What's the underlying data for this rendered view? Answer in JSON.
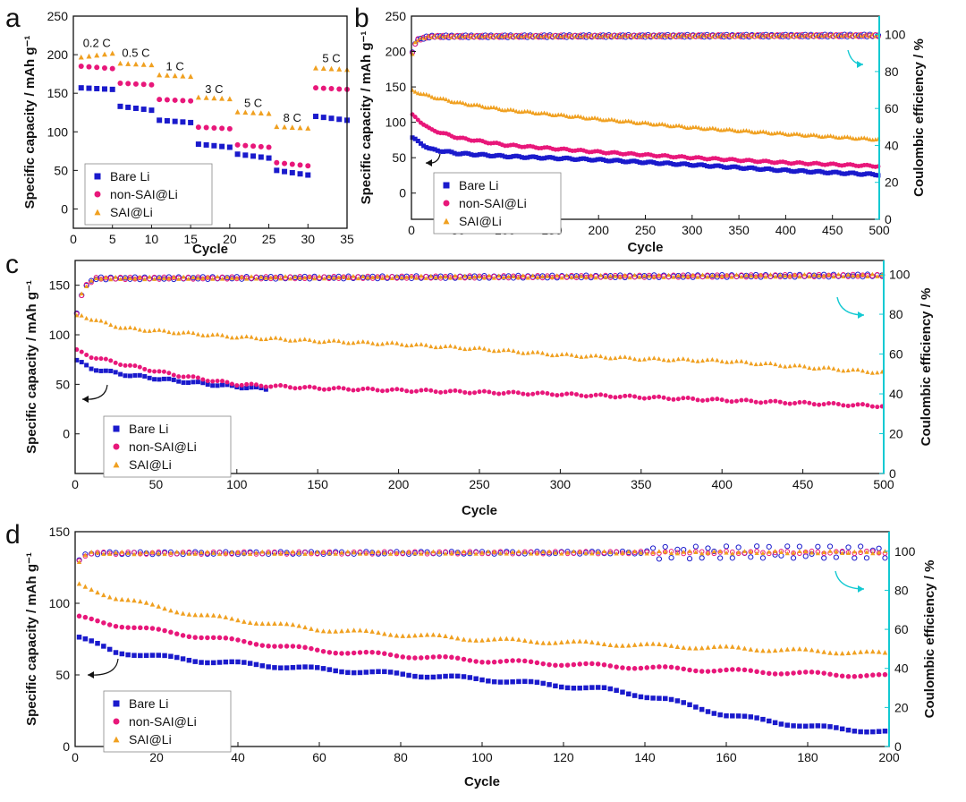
{
  "colors": {
    "bare": "#1a1acc",
    "non": "#e8177a",
    "sai": "#f0a020",
    "ce_axis": "#13c9d2",
    "axis": "#111111"
  },
  "chart_data": [
    {
      "panel": "a",
      "type": "scatter",
      "xlabel": "Cycle",
      "ylabel": "Specific capacity / mAh g⁻¹",
      "xlim": [
        0,
        35
      ],
      "ylim": [
        -25,
        250
      ],
      "xticks": [
        0,
        5,
        10,
        15,
        20,
        25,
        30,
        35
      ],
      "yticks": [
        0,
        50,
        100,
        150,
        200,
        250
      ],
      "legend": [
        "Bare Li",
        "non-SAI@Li",
        "SAI@Li"
      ],
      "rate_labels": [
        {
          "text": "0.2 C",
          "x": 3,
          "y": 210
        },
        {
          "text": "0.5 C",
          "x": 8,
          "y": 197
        },
        {
          "text": "1 C",
          "x": 13,
          "y": 180
        },
        {
          "text": "3 C",
          "x": 18,
          "y": 150
        },
        {
          "text": "5 C",
          "x": 23,
          "y": 132
        },
        {
          "text": "8 C",
          "x": 28,
          "y": 113
        },
        {
          "text": "5 C",
          "x": 33,
          "y": 190
        }
      ],
      "series": [
        {
          "name": "Bare Li",
          "segments": [
            [
              1,
              5,
              157,
              155
            ],
            [
              6,
              10,
              133,
              128
            ],
            [
              11,
              15,
              115,
              112
            ],
            [
              16,
              20,
              84,
              80
            ],
            [
              21,
              25,
              71,
              66
            ],
            [
              26,
              30,
              50,
              44
            ],
            [
              31,
              35,
              120,
              115
            ]
          ]
        },
        {
          "name": "non-SAI@Li",
          "segments": [
            [
              1,
              5,
              185,
              182
            ],
            [
              6,
              10,
              163,
              161
            ],
            [
              11,
              15,
              142,
              140
            ],
            [
              16,
              20,
              106,
              104
            ],
            [
              21,
              25,
              83,
              80
            ],
            [
              26,
              30,
              60,
              56
            ],
            [
              31,
              35,
              157,
              155
            ]
          ]
        },
        {
          "name": "SAI@Li",
          "segments": [
            [
              1,
              5,
              197,
              202
            ],
            [
              6,
              10,
              189,
              187
            ],
            [
              11,
              15,
              174,
              172
            ],
            [
              16,
              20,
              145,
              143
            ],
            [
              21,
              25,
              126,
              124
            ],
            [
              26,
              30,
              107,
              105
            ],
            [
              31,
              35,
              183,
              181
            ]
          ]
        }
      ]
    },
    {
      "panel": "b",
      "type": "scatter",
      "xlabel": "Cycle",
      "ylabel": "Specific capacity / mAh g⁻¹",
      "y2label": "Coulombic efficiency / %",
      "xlim": [
        0,
        500
      ],
      "ylim": [
        -37,
        250
      ],
      "y2lim": [
        0,
        110
      ],
      "xticks": [
        0,
        50,
        100,
        150,
        200,
        250,
        300,
        350,
        400,
        450,
        500
      ],
      "yticks": [
        0,
        50,
        100,
        150,
        200,
        250
      ],
      "y2ticks": [
        0,
        20,
        40,
        60,
        80,
        100
      ],
      "legend": [
        "Bare Li",
        "non-SAI@Li",
        "SAI@Li"
      ],
      "series": [
        {
          "name": "Bare Li",
          "x": [
            1,
            20,
            50,
            100,
            200,
            300,
            400,
            500
          ],
          "y": [
            78,
            62,
            56,
            52,
            47,
            40,
            32,
            26
          ]
        },
        {
          "name": "non-SAI@Li",
          "x": [
            1,
            20,
            50,
            100,
            200,
            300,
            400,
            500
          ],
          "y": [
            110,
            90,
            78,
            68,
            58,
            50,
            43,
            38
          ]
        },
        {
          "name": "SAI@Li",
          "x": [
            1,
            20,
            50,
            100,
            200,
            300,
            400,
            500
          ],
          "y": [
            145,
            137,
            128,
            118,
            105,
            93,
            84,
            76
          ]
        }
      ],
      "ce": {
        "x": [
          1,
          5,
          20,
          500
        ],
        "y": [
          90,
          97,
          99,
          99.5
        ]
      }
    },
    {
      "panel": "c",
      "type": "scatter",
      "xlabel": "Cycle",
      "ylabel": "Specific capacity / mAh g⁻¹",
      "y2label": "Coulombic efficiency / %",
      "xlim": [
        0,
        500
      ],
      "ylim": [
        -40,
        175
      ],
      "y2lim": [
        0,
        107
      ],
      "xticks": [
        0,
        50,
        100,
        150,
        200,
        250,
        300,
        350,
        400,
        450,
        500
      ],
      "yticks": [
        0,
        50,
        100,
        150
      ],
      "y2ticks": [
        0,
        20,
        40,
        60,
        80,
        100
      ],
      "legend": [
        "Bare Li",
        "non-SAI@Li",
        "SAI@Li"
      ],
      "series": [
        {
          "name": "Bare Li",
          "x": [
            1,
            10,
            30,
            60,
            90,
            120
          ],
          "y": [
            74,
            66,
            60,
            54,
            49,
            45
          ]
        },
        {
          "name": "non-SAI@Li",
          "x": [
            1,
            10,
            30,
            60,
            100,
            150,
            200,
            300,
            400,
            500
          ],
          "y": [
            84,
            78,
            70,
            60,
            50,
            46,
            44,
            40,
            34,
            28
          ]
        },
        {
          "name": "SAI@Li",
          "x": [
            1,
            10,
            30,
            60,
            100,
            150,
            200,
            250,
            300,
            350,
            400,
            450,
            500
          ],
          "y": [
            122,
            116,
            107,
            103,
            98,
            94,
            91,
            86,
            80,
            76,
            74,
            68,
            62
          ]
        }
      ],
      "ce": {
        "x": [
          1,
          5,
          12,
          500
        ],
        "y": [
          80,
          93,
          98,
          99.5
        ]
      }
    },
    {
      "panel": "d",
      "type": "scatter",
      "xlabel": "Cycle",
      "ylabel": "Specific capacity / mAh g⁻¹",
      "y2label": "Coulombic efficiency / %",
      "xlim": [
        0,
        200
      ],
      "ylim": [
        0,
        150
      ],
      "y2lim": [
        0,
        110
      ],
      "xticks": [
        0,
        20,
        40,
        60,
        80,
        100,
        120,
        140,
        160,
        180,
        200
      ],
      "yticks": [
        0,
        50,
        100,
        150
      ],
      "y2ticks": [
        0,
        20,
        40,
        60,
        80,
        100
      ],
      "legend": [
        "Bare Li",
        "non-SAI@Li",
        "SAI@Li"
      ],
      "series": [
        {
          "name": "Bare Li",
          "x": [
            1,
            10,
            30,
            60,
            100,
            130,
            145,
            160,
            180,
            200
          ],
          "y": [
            76,
            66,
            60,
            54,
            47,
            40,
            33,
            22,
            14,
            10
          ]
        },
        {
          "name": "non-SAI@Li",
          "x": [
            1,
            10,
            30,
            60,
            100,
            150,
            200
          ],
          "y": [
            90,
            85,
            77,
            67,
            60,
            54,
            49
          ]
        },
        {
          "name": "SAI@Li",
          "x": [
            1,
            10,
            30,
            60,
            100,
            150,
            200
          ],
          "y": [
            113,
            104,
            92,
            82,
            75,
            70,
            65
          ]
        }
      ],
      "ce": {
        "x": [
          1,
          3,
          200
        ],
        "y": [
          95,
          99,
          99.5
        ]
      }
    }
  ]
}
